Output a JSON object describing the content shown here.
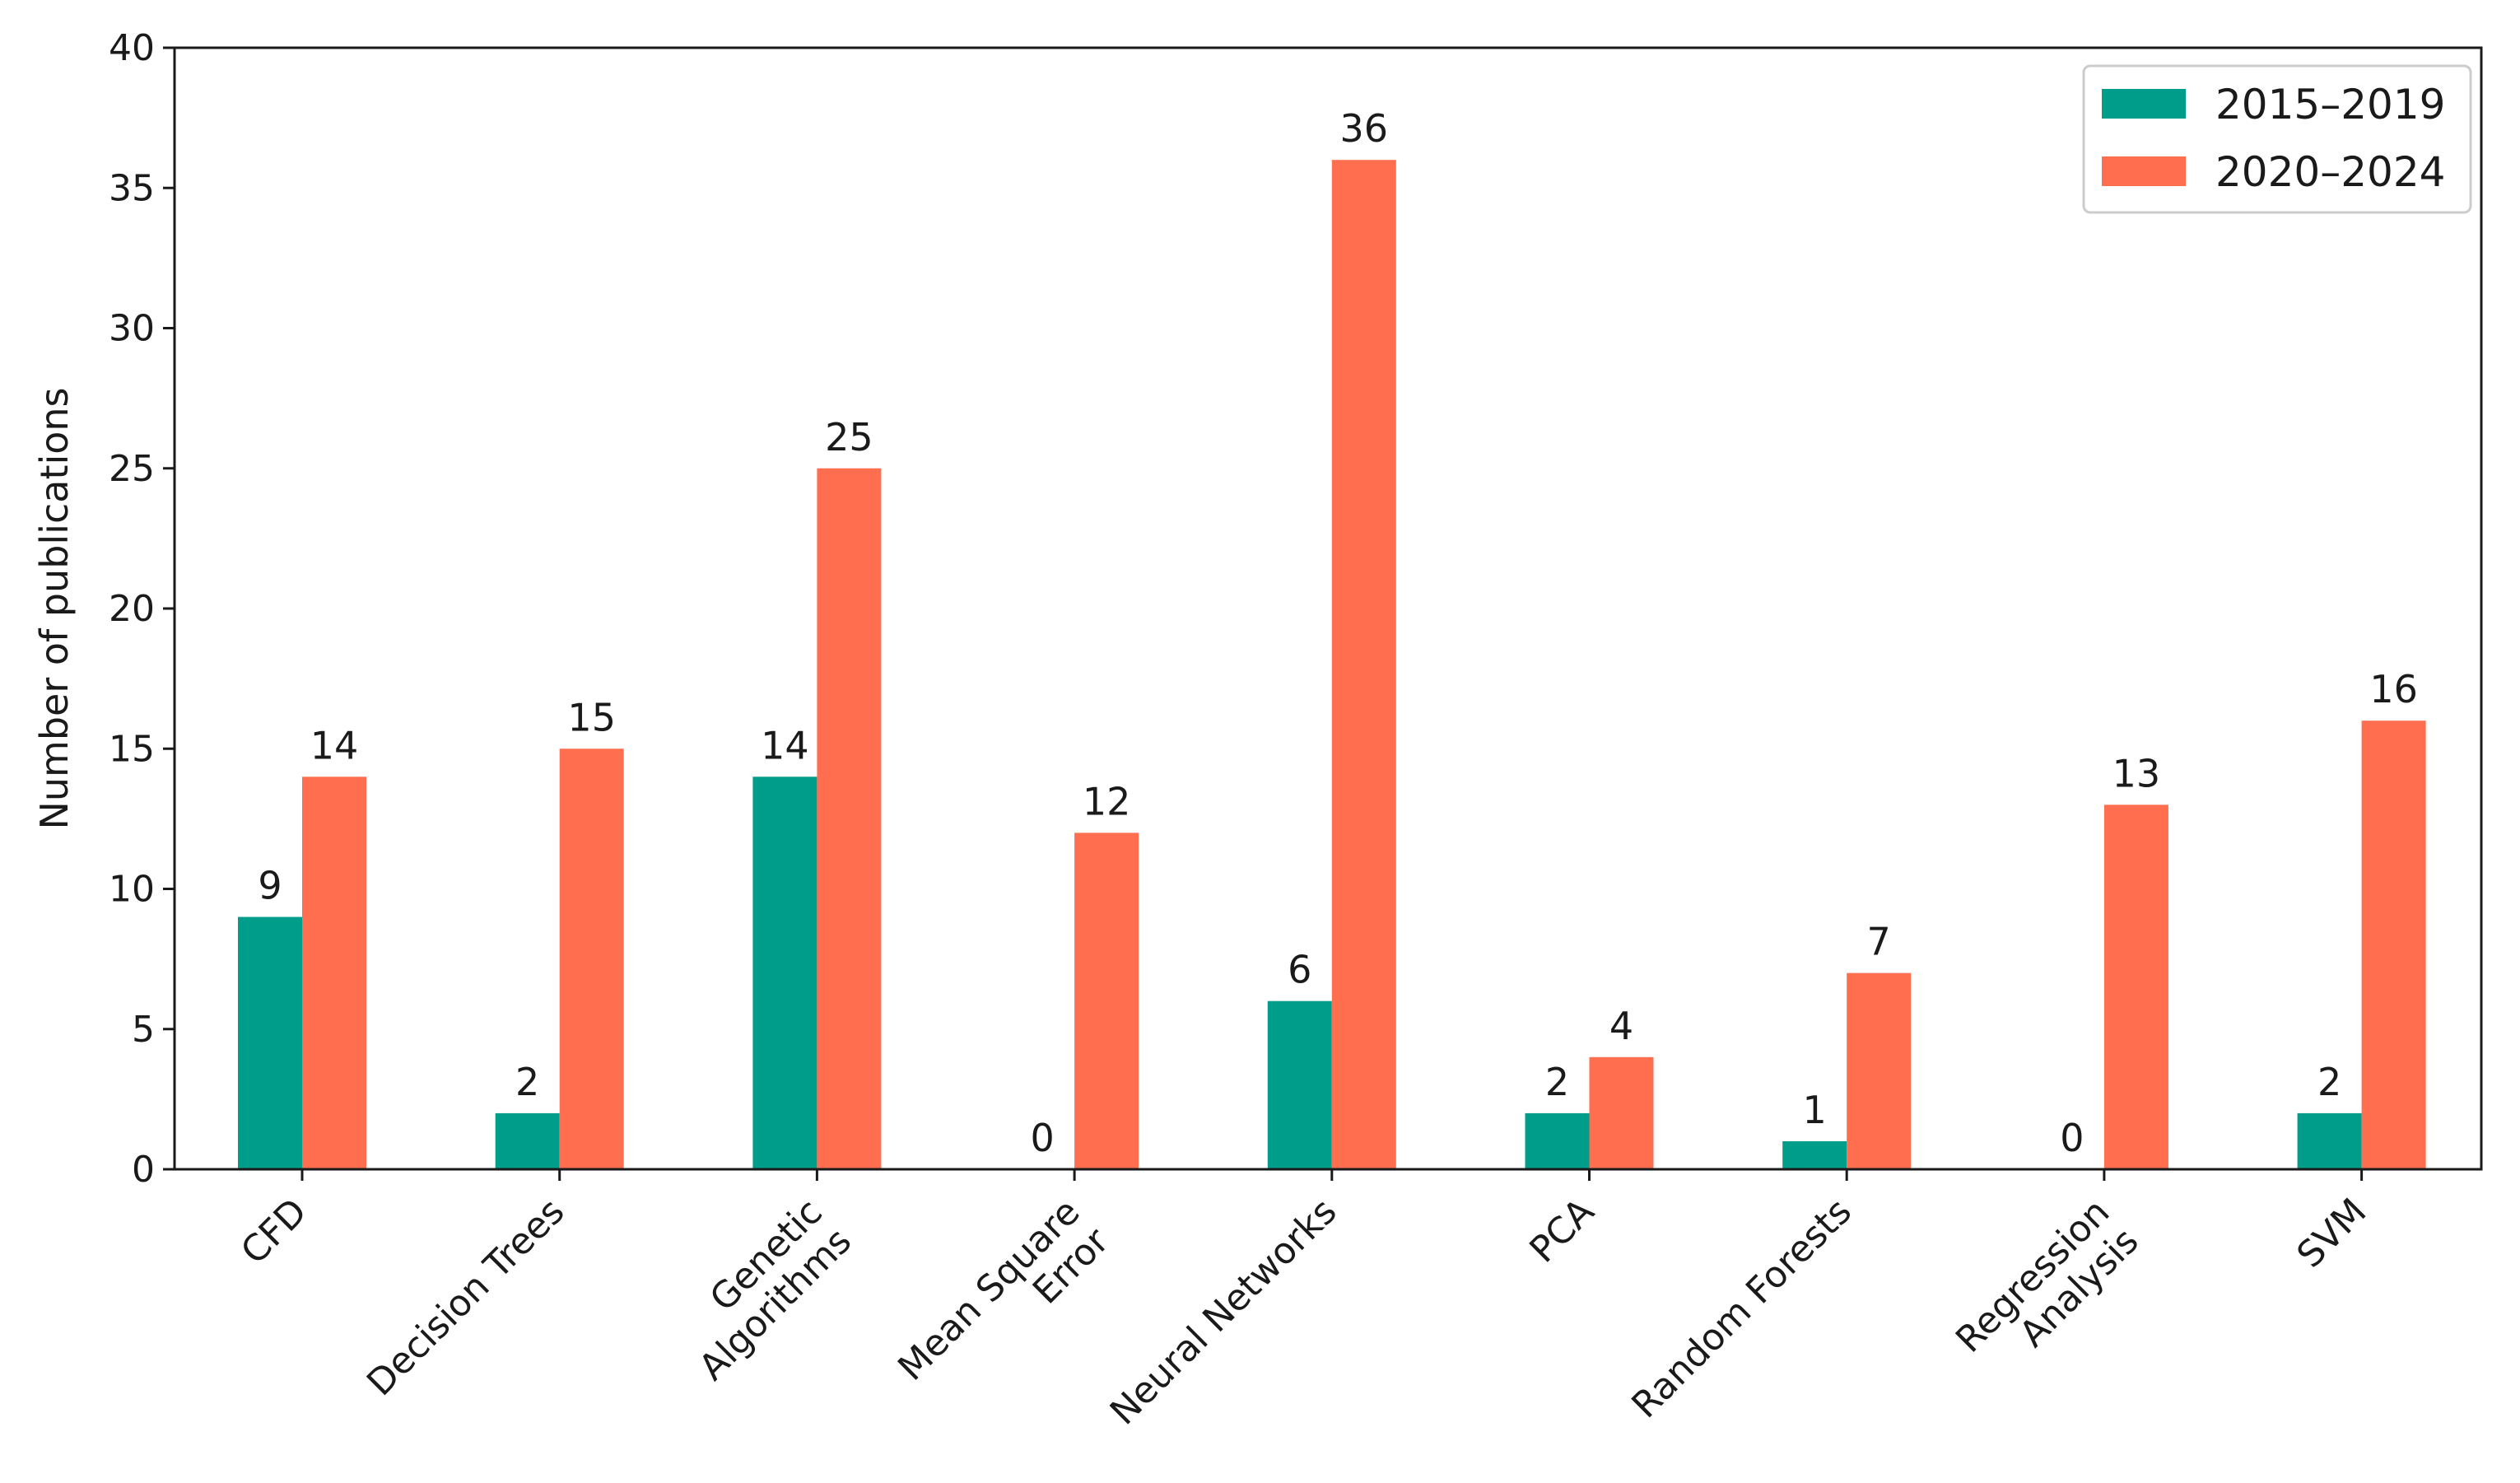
{
  "chart_data": {
    "type": "bar",
    "title": "",
    "xlabel": "",
    "ylabel": "Number of publications",
    "ylim": [
      0,
      40
    ],
    "yticks": [
      0,
      5,
      10,
      15,
      20,
      25,
      30,
      35,
      40
    ],
    "grid": false,
    "legend_position": "top-right",
    "categories": [
      [
        "CFD"
      ],
      [
        "Decision Trees"
      ],
      [
        "Genetic",
        "Algorithms"
      ],
      [
        "Mean Square",
        "Error"
      ],
      [
        "Neural Networks"
      ],
      [
        "PCA"
      ],
      [
        "Random Forests"
      ],
      [
        "Regression",
        "Analysis"
      ],
      [
        "SVM"
      ]
    ],
    "series": [
      {
        "name": "2015–2019",
        "color": "#009e8a",
        "values": [
          9,
          2,
          14,
          0,
          6,
          2,
          1,
          0,
          2
        ]
      },
      {
        "name": "2020–2024",
        "color": "#ff6f4f",
        "values": [
          14,
          15,
          25,
          12,
          36,
          4,
          7,
          13,
          16
        ]
      }
    ]
  }
}
